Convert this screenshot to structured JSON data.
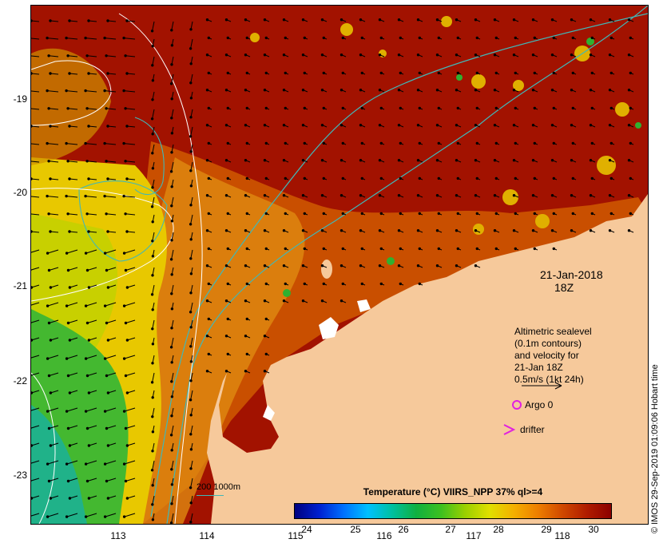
{
  "map": {
    "lat_ticks": [
      "-19",
      "-20",
      "-21",
      "-22",
      "-23"
    ],
    "lon_ticks": [
      "113",
      "114",
      "115",
      "116",
      "117",
      "118"
    ],
    "date_label": "21-Jan-2018",
    "time_label": "18Z",
    "legend_lines": [
      "Altimetric sealevel",
      "(0.1m contours)",
      "and velocity for",
      "21-Jan 18Z",
      "0.5m/s (1kt 24h)"
    ],
    "argo_label": "Argo 0",
    "drifter_label": "drifter",
    "contour_key": "200  1000m",
    "colorbar": {
      "title": "Temperature (°C) VIIRS_NPP 37% ql>=4",
      "ticks": [
        "24",
        "25",
        "26",
        "27",
        "28",
        "29",
        "30"
      ]
    },
    "credit": "© IMOS 29-Sep-2019 01:09:06 Hobart time",
    "colors": {
      "land": "#f6c99b",
      "sst_hot": "#a01000",
      "sst_warm": "#d06000",
      "sst_mid": "#e0c000",
      "sst_cool": "#30b030",
      "isobath": "#40b8b8",
      "sealevel_contour": "#ffffff",
      "argo": "#e020e0"
    }
  }
}
